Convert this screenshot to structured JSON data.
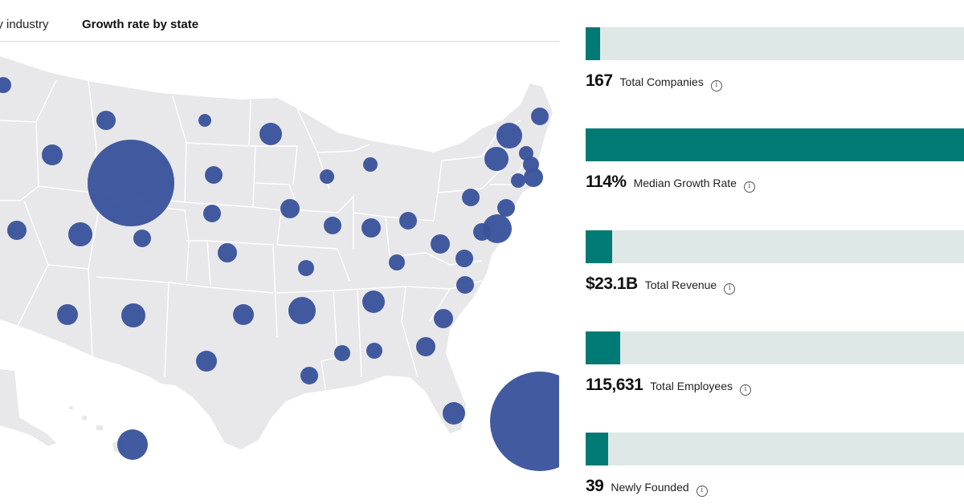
{
  "tabs": {
    "industry_label": "by industry",
    "state_label": "Growth rate by state"
  },
  "map": {
    "land_color": "#e8e8ea",
    "border_color": "#ffffff",
    "bubble_color": "#3a539b"
  },
  "stats": {
    "track_color": "#dde8e7",
    "fill_color": "#007a74",
    "items": [
      {
        "value": "167",
        "label": "Total Companies",
        "fill_fraction": 0.038
      },
      {
        "value": "114%",
        "label": "Median Growth Rate",
        "fill_fraction": 1.0
      },
      {
        "value": "$23.1B",
        "label": "Total Revenue",
        "fill_fraction": 0.07
      },
      {
        "value": "115,631",
        "label": "Total Employees",
        "fill_fraction": 0.092
      },
      {
        "value": "39",
        "label": "Newly Founded",
        "fill_fraction": 0.06
      }
    ]
  }
}
